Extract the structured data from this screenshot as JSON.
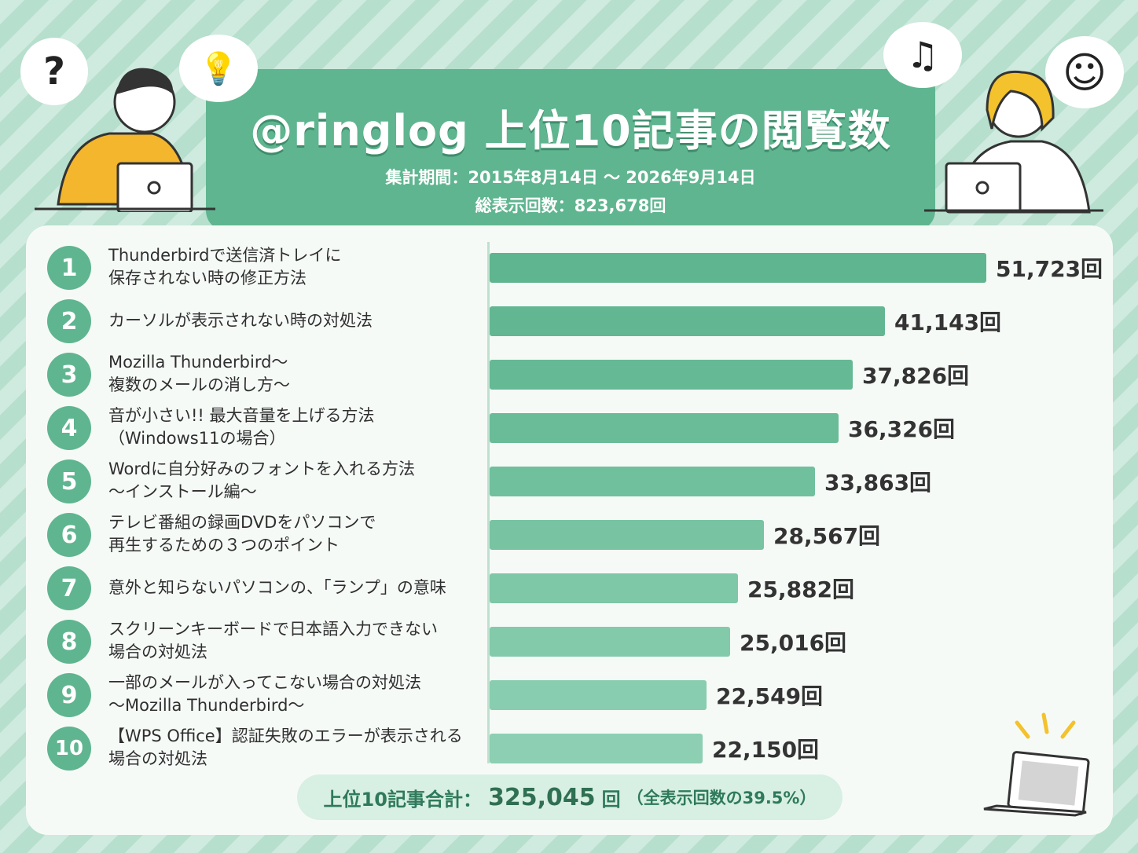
{
  "header": {
    "title": "@ringlog 上位10記事の閲覧数",
    "period": "集計期間：2015年8月14日 〜 2026年9月14日",
    "total": "総表示回数：823,678回"
  },
  "icons": {
    "question": "?",
    "bulb": "💡",
    "note": "♫",
    "smile": "☺"
  },
  "chart_data": {
    "type": "bar",
    "orientation": "horizontal",
    "unit": "回",
    "categories": [
      "Thunderbirdで送信済トレイに\n保存されない時の修正方法",
      "カーソルが表示されない時の対処法",
      "Mozilla Thunderbird〜\n複数のメールの消し方〜",
      "音が小さい!!  最大音量を上げる方法\n（Windows11の場合）",
      "Wordに自分好みのフォントを入れる方法\n〜インストール編〜",
      "テレビ番組の録画DVDをパソコンで\n再生するための３つのポイント",
      "意外と知らないパソコンの、「ランプ」の意味",
      "スクリーンキーボードで日本語入力できない\n場合の対処法",
      "一部のメールが入ってこない場合の対処法\n〜Mozilla Thunderbird〜",
      "【WPS Office】認証失敗のエラーが表示される\n場合の対処法"
    ],
    "ranks": [
      "1",
      "2",
      "3",
      "4",
      "5",
      "6",
      "7",
      "8",
      "9",
      "10"
    ],
    "values": [
      51723,
      41143,
      37826,
      36326,
      33863,
      28567,
      25882,
      25016,
      22549,
      22150
    ],
    "value_labels": [
      "51,723回",
      "41,143回",
      "37,826回",
      "36,326回",
      "33,863回",
      "28,567回",
      "25,882回",
      "25,016回",
      "22,549回",
      "22,150回"
    ],
    "bar_colors": [
      "#5fb58f",
      "#62b792",
      "#66b995",
      "#6abc98",
      "#70c09d",
      "#77c3a2",
      "#7ec7a7",
      "#83caab",
      "#88cdaf",
      "#8ccfb2"
    ]
  },
  "summary": {
    "label": "上位10記事合計：",
    "value": "325,045",
    "unit": "回",
    "note": "（全表示回数の39.5%）"
  }
}
